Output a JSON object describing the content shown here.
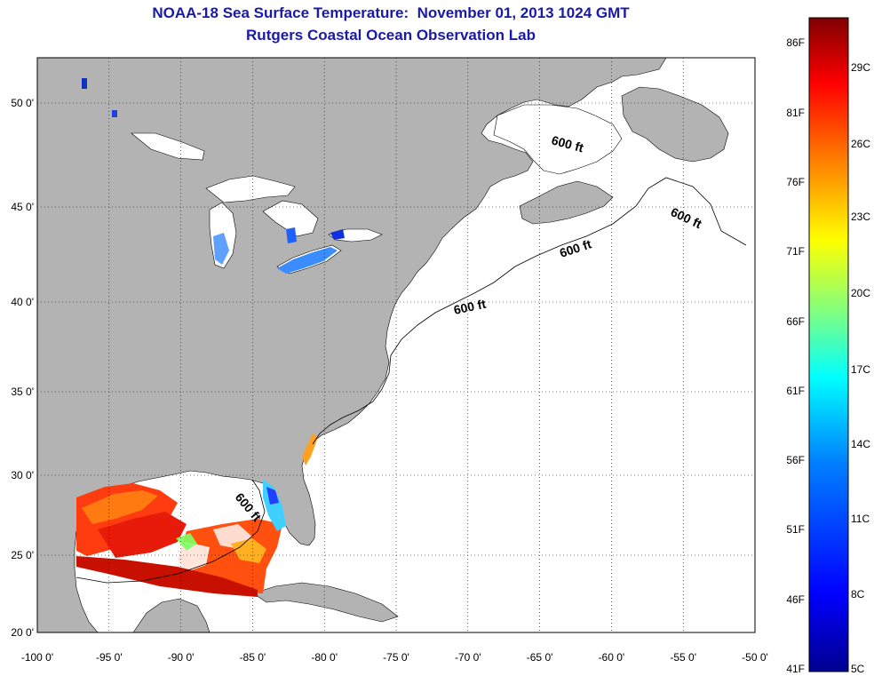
{
  "header": {
    "title": "NOAA-18 Sea Surface Temperature:  November 01, 2013 1024 GMT",
    "subtitle": "Rutgers Coastal Ocean Observation Lab"
  },
  "map": {
    "lon_range": [
      -100,
      -50
    ],
    "lat_range": [
      20,
      52
    ],
    "grid": "dotted",
    "lon_ticks": [
      "-100 0'",
      "-95 0'",
      "-90 0'",
      "-85 0'",
      "-80 0'",
      "-75 0'",
      "-70 0'",
      "-65 0'",
      "-60 0'",
      "-55 0'",
      "-50 0'"
    ],
    "lat_ticks": [
      "20 0'",
      "25 0'",
      "30 0'",
      "35 0'",
      "40 0'",
      "45 0'",
      "50 0'"
    ],
    "contour_labels": [
      "600 ft",
      "600 ft",
      "600 ft",
      "600 ft",
      "600 ft"
    ],
    "land_color": "#b3b3b3",
    "ocean_color": "#ffffff"
  },
  "colorbar": {
    "fahrenheit_labels": [
      "86F",
      "81F",
      "76F",
      "71F",
      "66F",
      "61F",
      "56F",
      "51F",
      "46F",
      "41F"
    ],
    "celsius_labels": [
      "29C",
      "26C",
      "23C",
      "20C",
      "17C",
      "14C",
      "11C",
      "8C",
      "5C"
    ],
    "colors": [
      "#7f0000",
      "#ff0000",
      "#ff8000",
      "#ffff00",
      "#80ff80",
      "#00ffff",
      "#0080ff",
      "#0000ff",
      "#00008f"
    ]
  }
}
